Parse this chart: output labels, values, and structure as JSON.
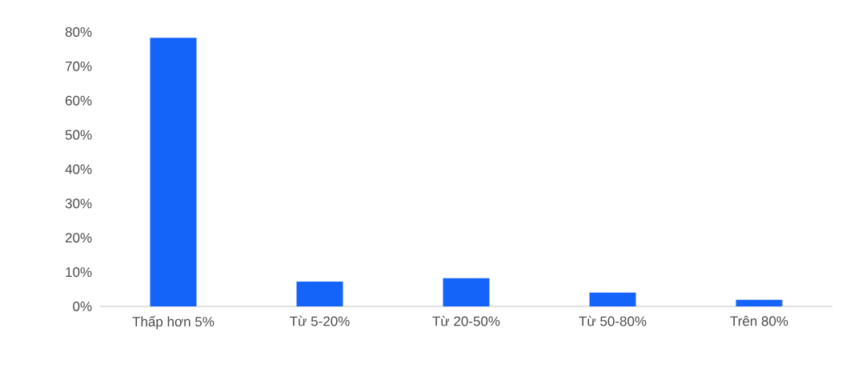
{
  "chart_data": {
    "type": "bar",
    "categories": [
      "Thấp hơn 5%",
      "Từ 5-20%",
      "Từ 20-50%",
      "Từ 50-80%",
      "Trên 80%"
    ],
    "values": [
      78.3,
      7.2,
      8.2,
      4.0,
      1.9
    ],
    "color": "#1464fa",
    "ylim": [
      0,
      80
    ],
    "yticks": [
      {
        "value": 0,
        "label": "0%"
      },
      {
        "value": 10,
        "label": "10%"
      },
      {
        "value": 20,
        "label": "20%"
      },
      {
        "value": 30,
        "label": "30%"
      },
      {
        "value": 40,
        "label": "40%"
      },
      {
        "value": 50,
        "label": "50%"
      },
      {
        "value": 60,
        "label": "60%"
      },
      {
        "value": 70,
        "label": "70%"
      },
      {
        "value": 80,
        "label": "80%"
      }
    ],
    "grid": false
  }
}
